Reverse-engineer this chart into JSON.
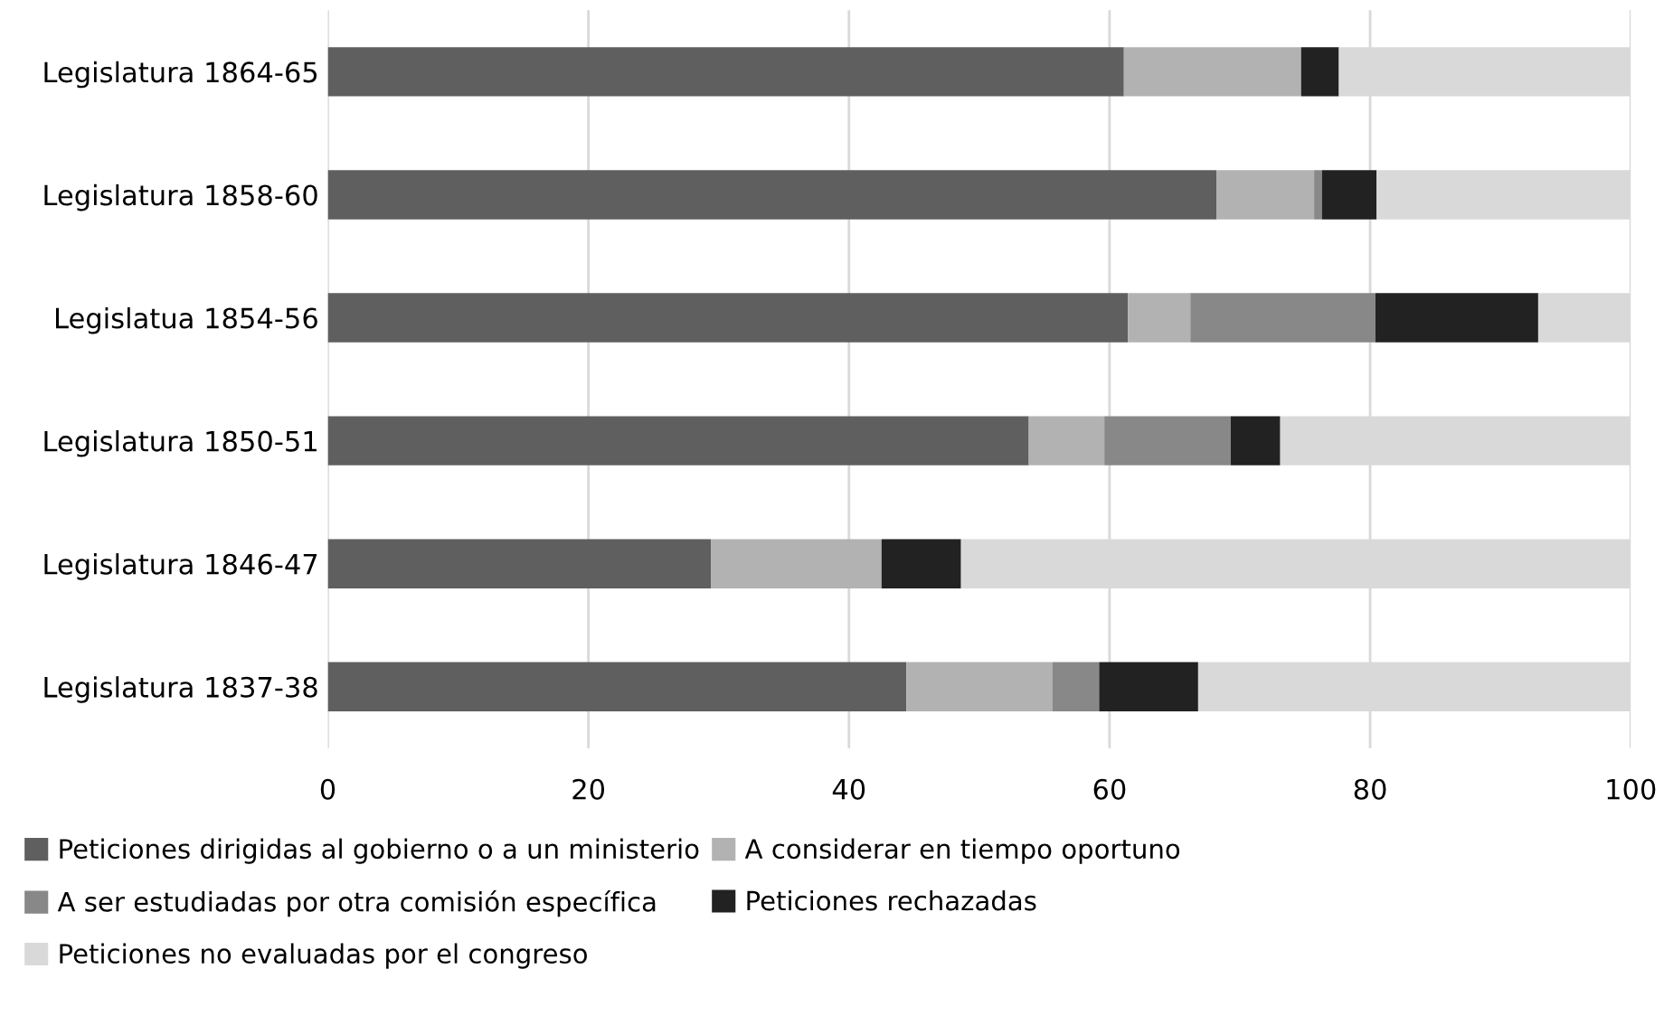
{
  "chart_data": {
    "type": "bar",
    "orientation": "horizontal",
    "stacked": true,
    "categories": [
      "Legislatura 1864-65",
      "Legislatura 1858-60",
      "Legislatua 1854-56",
      "Legislatura 1850-51",
      "Legislatura 1846-47",
      "Legislatura 1837-38"
    ],
    "series": [
      {
        "name": "Peticiones dirigidas al gobierno o a un ministerio",
        "color": "#5f5f5f",
        "values": [
          61.1,
          68.2,
          61.4,
          53.8,
          29.4,
          44.4
        ]
      },
      {
        "name": "A considerar en tiempo oportuno",
        "color": "#b2b2b2",
        "values": [
          13.6,
          7.5,
          4.8,
          5.8,
          13.1,
          11.2
        ]
      },
      {
        "name": "A ser estudiadas por otra comisión específica",
        "color": "#878887",
        "values": [
          0,
          0.6,
          14.2,
          9.7,
          0,
          3.6
        ]
      },
      {
        "name": "Peticiones rechazadas",
        "color": "#222222",
        "values": [
          2.9,
          4.2,
          12.5,
          3.8,
          6.1,
          7.6
        ]
      },
      {
        "name": "Peticiones no evaluadas por el congreso",
        "color": "#d9d9d9",
        "values": [
          22.4,
          19.5,
          7.1,
          26.9,
          51.4,
          33.2
        ]
      }
    ],
    "xlim": [
      0,
      100
    ],
    "xticks": [
      0,
      20,
      40,
      60,
      80,
      100
    ],
    "grid": "x",
    "legend": "bottom"
  }
}
